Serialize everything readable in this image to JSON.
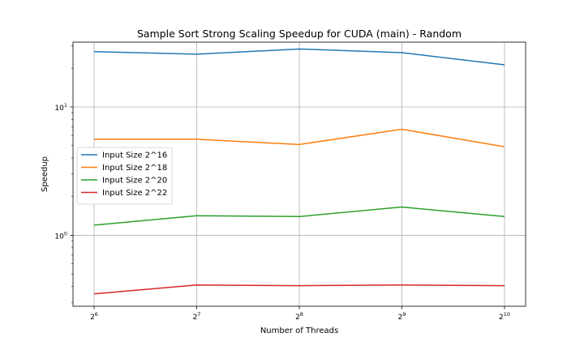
{
  "chart_data": {
    "type": "line",
    "title": "Sample Sort Strong Scaling Speedup for CUDA (main) - Random",
    "xlabel": "Number of Threads",
    "ylabel": "Speedup",
    "x": [
      64,
      128,
      256,
      512,
      1024
    ],
    "x_tick_labels": [
      {
        "base": "2",
        "exp": "6"
      },
      {
        "base": "2",
        "exp": "7"
      },
      {
        "base": "2",
        "exp": "8"
      },
      {
        "base": "2",
        "exp": "9"
      },
      {
        "base": "2",
        "exp": "10"
      }
    ],
    "x_scale": "log2",
    "y_scale": "log10",
    "ylim": [
      0.28,
      32
    ],
    "y_tick_labels": [
      {
        "value": 1,
        "base": "10",
        "exp": "0"
      },
      {
        "value": 10,
        "base": "10",
        "exp": "1"
      }
    ],
    "grid": true,
    "legend_position": "center-left",
    "series": [
      {
        "name": "Input Size 2^16",
        "color": "#1f77b4",
        "values": [
          27.0,
          25.8,
          28.3,
          26.5,
          21.3
        ]
      },
      {
        "name": "Input Size 2^18",
        "color": "#ff7f0e",
        "values": [
          5.6,
          5.6,
          5.1,
          6.7,
          4.9
        ]
      },
      {
        "name": "Input Size 2^20",
        "color": "#2ca02c",
        "values": [
          1.2,
          1.42,
          1.4,
          1.66,
          1.4
        ]
      },
      {
        "name": "Input Size 2^22",
        "color": "#d62728",
        "values": [
          0.35,
          0.41,
          0.405,
          0.41,
          0.405
        ]
      }
    ]
  }
}
